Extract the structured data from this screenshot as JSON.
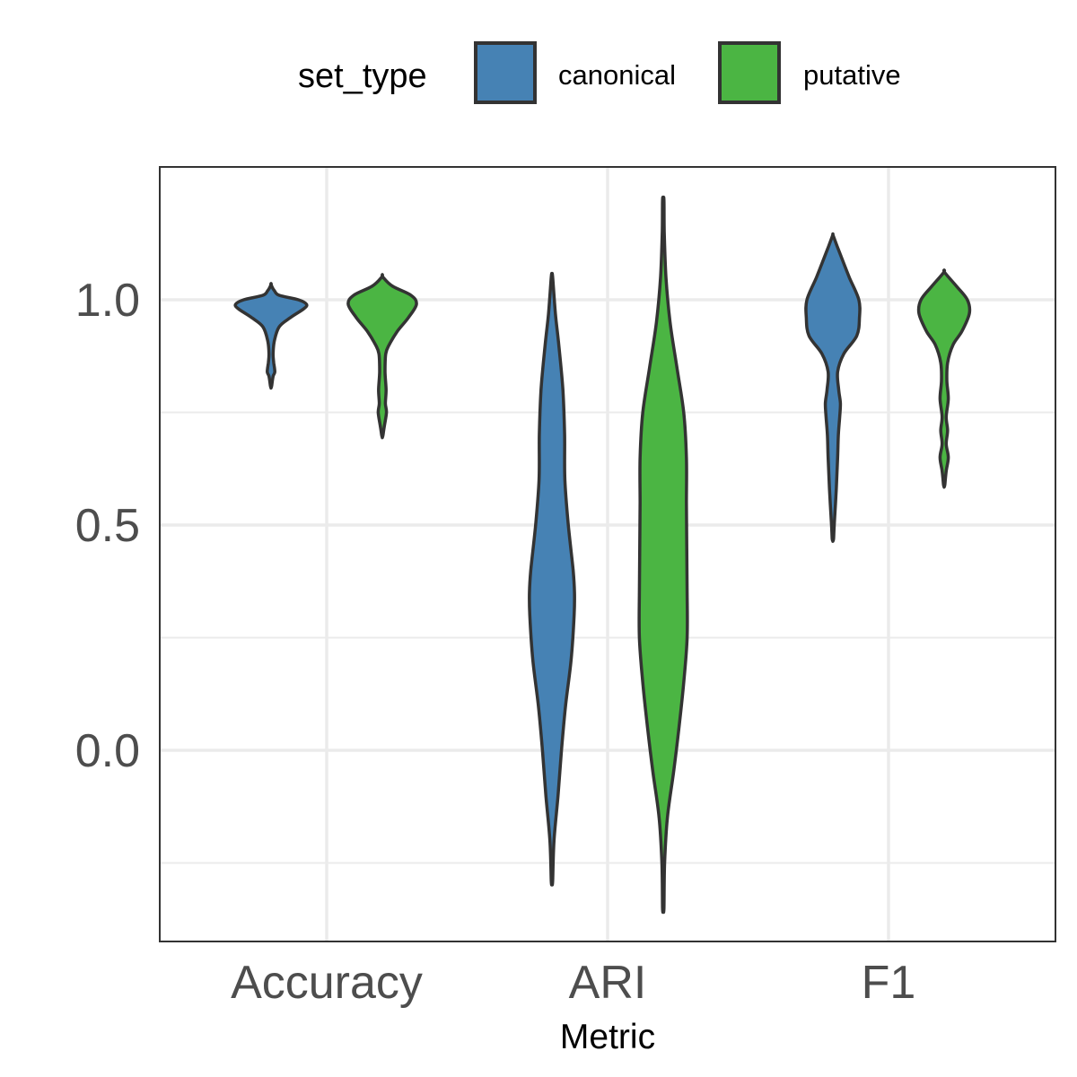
{
  "chart_data": {
    "type": "violin",
    "xlabel": "Metric",
    "ylabel": "",
    "categories": [
      "Accuracy",
      "ARI",
      "F1"
    ],
    "ylim": [
      -0.42,
      1.3
    ],
    "yticks": [
      0.0,
      0.5,
      1.0
    ],
    "ytick_labels": [
      "0.0",
      "0.5",
      "1.0"
    ],
    "grid": true,
    "legend": {
      "title": "set_type",
      "position": "top",
      "entries": [
        "canonical",
        "putative"
      ]
    },
    "colors": {
      "canonical": "#4682b4",
      "putative": "#4bb543",
      "outline": "#333333",
      "grid": "#ebebeb",
      "panel_border": "#333333"
    },
    "series": [
      {
        "name": "canonical",
        "violins": [
          {
            "category": "Accuracy",
            "profile": [
              [
                0.81,
                0.1
              ],
              [
                0.83,
                0.3
              ],
              [
                0.84,
                0.55
              ],
              [
                0.86,
                0.4
              ],
              [
                0.88,
                0.3
              ],
              [
                0.91,
                0.5
              ],
              [
                0.94,
                1.2
              ],
              [
                0.96,
                2.8
              ],
              [
                0.98,
                4.8
              ],
              [
                0.99,
                5.2
              ],
              [
                1.0,
                4.0
              ],
              [
                1.01,
                1.2
              ],
              [
                1.02,
                0.5
              ],
              [
                1.03,
                0.1
              ]
            ]
          },
          {
            "category": "ARI",
            "profile": [
              [
                -0.29,
                0.1
              ],
              [
                -0.2,
                0.3
              ],
              [
                -0.1,
                0.9
              ],
              [
                0.0,
                1.4
              ],
              [
                0.1,
                2.0
              ],
              [
                0.2,
                2.8
              ],
              [
                0.3,
                3.25
              ],
              [
                0.35,
                3.3
              ],
              [
                0.4,
                3.1
              ],
              [
                0.5,
                2.4
              ],
              [
                0.6,
                1.9
              ],
              [
                0.7,
                1.85
              ],
              [
                0.8,
                1.6
              ],
              [
                0.9,
                1.0
              ],
              [
                0.97,
                0.5
              ],
              [
                1.05,
                0.1
              ]
            ]
          },
          {
            "category": "F1",
            "profile": [
              [
                0.47,
                0.1
              ],
              [
                0.5,
                0.2
              ],
              [
                0.58,
                0.5
              ],
              [
                0.65,
                0.7
              ],
              [
                0.7,
                0.8
              ],
              [
                0.74,
                1.0
              ],
              [
                0.77,
                1.1
              ],
              [
                0.8,
                0.85
              ],
              [
                0.84,
                0.7
              ],
              [
                0.88,
                1.6
              ],
              [
                0.92,
                3.5
              ],
              [
                0.96,
                3.9
              ],
              [
                1.0,
                3.8
              ],
              [
                1.05,
                2.4
              ],
              [
                1.1,
                1.1
              ],
              [
                1.14,
                0.1
              ]
            ]
          }
        ]
      },
      {
        "name": "putative",
        "violins": [
          {
            "category": "Accuracy",
            "profile": [
              [
                0.7,
                0.1
              ],
              [
                0.72,
                0.3
              ],
              [
                0.75,
                0.6
              ],
              [
                0.77,
                0.45
              ],
              [
                0.8,
                0.55
              ],
              [
                0.84,
                0.4
              ],
              [
                0.88,
                0.5
              ],
              [
                0.9,
                1.0
              ],
              [
                0.93,
                2.2
              ],
              [
                0.96,
                3.8
              ],
              [
                0.99,
                5.0
              ],
              [
                1.01,
                4.2
              ],
              [
                1.03,
                1.5
              ],
              [
                1.05,
                0.1
              ]
            ]
          },
          {
            "category": "ARI",
            "profile": [
              [
                -0.35,
                0.1
              ],
              [
                -0.25,
                0.2
              ],
              [
                -0.15,
                0.6
              ],
              [
                -0.05,
                1.5
              ],
              [
                0.05,
                2.3
              ],
              [
                0.15,
                3.0
              ],
              [
                0.25,
                3.5
              ],
              [
                0.35,
                3.5
              ],
              [
                0.45,
                3.45
              ],
              [
                0.55,
                3.4
              ],
              [
                0.65,
                3.4
              ],
              [
                0.75,
                3.0
              ],
              [
                0.85,
                2.0
              ],
              [
                0.95,
                1.0
              ],
              [
                1.05,
                0.4
              ],
              [
                1.15,
                0.15
              ],
              [
                1.22,
                0.1
              ]
            ]
          },
          {
            "category": "F1",
            "profile": [
              [
                0.59,
                0.1
              ],
              [
                0.62,
                0.3
              ],
              [
                0.65,
                0.6
              ],
              [
                0.68,
                0.3
              ],
              [
                0.71,
                0.5
              ],
              [
                0.74,
                0.3
              ],
              [
                0.78,
                0.6
              ],
              [
                0.82,
                0.4
              ],
              [
                0.86,
                0.5
              ],
              [
                0.9,
                1.3
              ],
              [
                0.93,
                2.6
              ],
              [
                0.97,
                3.7
              ],
              [
                1.0,
                3.4
              ],
              [
                1.03,
                1.8
              ],
              [
                1.06,
                0.1
              ]
            ]
          }
        ]
      }
    ]
  }
}
